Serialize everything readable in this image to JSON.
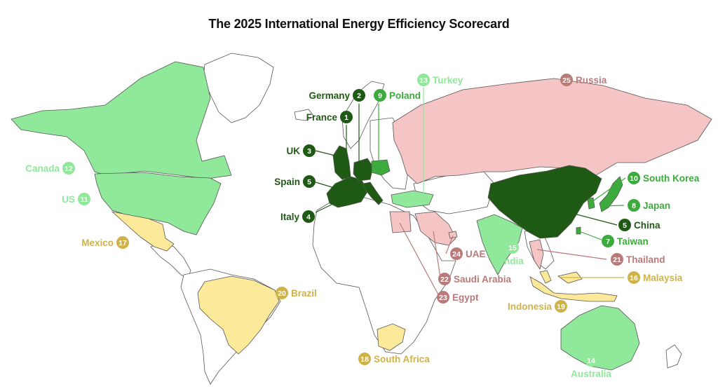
{
  "title": "The 2025 International Energy Efficiency Scorecard",
  "colors": {
    "top": "#1f5a14",
    "high": "#3daa3d",
    "upper": "#90e89a",
    "middle": "#cfb34a",
    "middle_fill": "#fde99a",
    "low": "#b97a7a",
    "low_fill": "#f4c5c4"
  },
  "countries": [
    {
      "id": "france",
      "rank": "1",
      "name": "France",
      "tier": "top"
    },
    {
      "id": "germany",
      "rank": "2",
      "name": "Germany",
      "tier": "top"
    },
    {
      "id": "uk",
      "rank": "3",
      "name": "UK",
      "tier": "top"
    },
    {
      "id": "italy",
      "rank": "4",
      "name": "Italy",
      "tier": "top"
    },
    {
      "id": "spain",
      "rank": "5",
      "name": "Spain",
      "tier": "top"
    },
    {
      "id": "china",
      "rank": "5",
      "name": "China",
      "tier": "top"
    },
    {
      "id": "taiwan",
      "rank": "7",
      "name": "Taiwan",
      "tier": "high"
    },
    {
      "id": "japan",
      "rank": "8",
      "name": "Japan",
      "tier": "high"
    },
    {
      "id": "poland",
      "rank": "9",
      "name": "Poland",
      "tier": "high"
    },
    {
      "id": "southkorea",
      "rank": "10",
      "name": "South Korea",
      "tier": "high"
    },
    {
      "id": "us",
      "rank": "11",
      "name": "US",
      "tier": "upper"
    },
    {
      "id": "canada",
      "rank": "12",
      "name": "Canada",
      "tier": "upper"
    },
    {
      "id": "turkey",
      "rank": "13",
      "name": "Turkey",
      "tier": "upper"
    },
    {
      "id": "australia",
      "rank": "14",
      "name": "Australia",
      "tier": "upper"
    },
    {
      "id": "india",
      "rank": "15",
      "name": "India",
      "tier": "upper"
    },
    {
      "id": "malaysia",
      "rank": "16",
      "name": "Malaysia",
      "tier": "middle"
    },
    {
      "id": "mexico",
      "rank": "17",
      "name": "Mexico",
      "tier": "middle"
    },
    {
      "id": "southafrica",
      "rank": "18",
      "name": "South Africa",
      "tier": "middle"
    },
    {
      "id": "indonesia",
      "rank": "19",
      "name": "Indonesia",
      "tier": "middle"
    },
    {
      "id": "brazil",
      "rank": "20",
      "name": "Brazil",
      "tier": "middle"
    },
    {
      "id": "thailand",
      "rank": "21",
      "name": "Thailand",
      "tier": "low"
    },
    {
      "id": "saudiarabia",
      "rank": "22",
      "name": "Saudi Arabia",
      "tier": "low"
    },
    {
      "id": "egypt",
      "rank": "23",
      "name": "Egypt",
      "tier": "low"
    },
    {
      "id": "uae",
      "rank": "24",
      "name": "UAE",
      "tier": "low"
    },
    {
      "id": "russia",
      "rank": "25",
      "name": "Russia",
      "tier": "low"
    }
  ]
}
